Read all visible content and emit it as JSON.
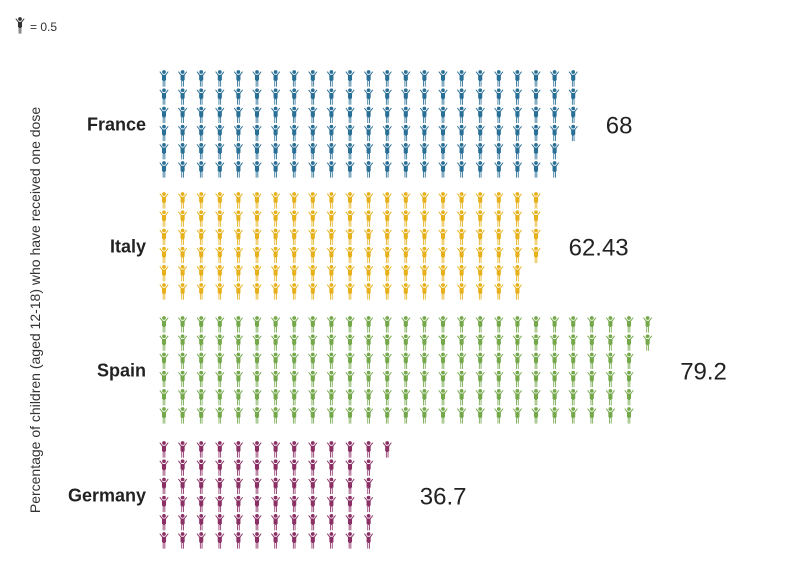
{
  "legend": {
    "icon_name": "person-icon",
    "text": "= 0.5"
  },
  "chart_data": {
    "type": "bar",
    "style": "pictogram",
    "unit_per_icon": 0.5,
    "ylabel": "Percentage of children (aged 12-18) who have received one dose",
    "categories": [
      "France",
      "Italy",
      "Spain",
      "Germany"
    ],
    "values": [
      68,
      62.43,
      79.2,
      36.7
    ],
    "value_labels": [
      "68",
      "62.43",
      "79.2",
      "36.7"
    ],
    "colors": [
      "#2a6f96",
      "#e6b11c",
      "#74a84b",
      "#8b3065"
    ]
  }
}
